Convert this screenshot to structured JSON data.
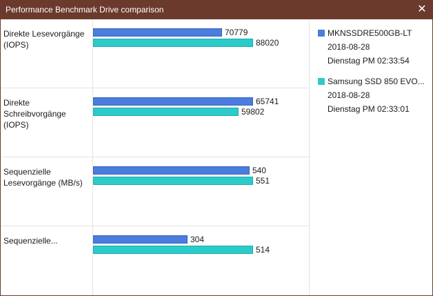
{
  "window": {
    "title": "Performance Benchmark Drive comparison",
    "close_glyph": "✕"
  },
  "legend": [
    {
      "name": "MKNSSDRE500GB-LT",
      "date": "2018-08-28",
      "time": "Dienstag PM 02:33:54",
      "color": "#4a7ddd"
    },
    {
      "name": "Samsung SSD 850 EVO...",
      "date": "2018-08-28",
      "time": "Dienstag PM 02:33:01",
      "color": "#2ccbcb"
    }
  ],
  "chart_data": {
    "type": "bar",
    "orientation": "horizontal",
    "grouping": "per-row scale",
    "categories": [
      "Direkte Lesevorgänge (IOPS)",
      "Direkte Schreibvorgänge (IOPS)",
      "Sequenzielle Lesevorgänge (MB/s)",
      "Sequenzielle..."
    ],
    "series": [
      {
        "name": "MKNSSDRE500GB-LT",
        "values": [
          70779,
          65741,
          540,
          304
        ],
        "labels": [
          "70779",
          "65741",
          "540",
          "304"
        ]
      },
      {
        "name": "Samsung SSD 850 EVO...",
        "values": [
          88020,
          59802,
          551,
          514
        ],
        "labels": [
          "88020",
          "59802",
          "551",
          "514"
        ]
      }
    ],
    "legend_position": "right",
    "grid": false
  }
}
